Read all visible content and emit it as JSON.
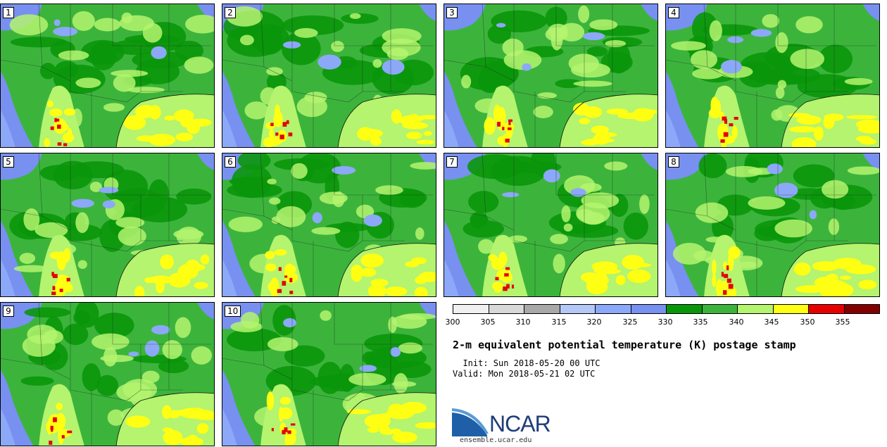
{
  "stamps": [
    "1",
    "2",
    "3",
    "4",
    "5",
    "6",
    "7",
    "8",
    "9",
    "10"
  ],
  "colorbar": {
    "levels": [
      "300",
      "305",
      "310",
      "315",
      "320",
      "325",
      "330",
      "335",
      "340",
      "345",
      "350",
      "355"
    ],
    "colors": [
      "#f0f0f0",
      "#d8d8d8",
      "#a8a8a8",
      "#b4c8f8",
      "#8ca8f8",
      "#7890f0",
      "#0a960a",
      "#3cb43c",
      "#b4f46e",
      "#ffff14",
      "#e60000",
      "#820000"
    ]
  },
  "map_colors": {
    "dark_green": "#0a960a",
    "green": "#3cb43c",
    "light_green": "#b4f46e",
    "yellow": "#ffff14",
    "red": "#e60000",
    "blue": "#7890f0",
    "light_blue": "#8ca8f8",
    "pale_blue": "#b4c8f8"
  },
  "title": "2-m equivalent potential temperature (K) postage stamp",
  "init": "  Init: Sun 2018-05-20 00 UTC",
  "valid": "Valid: Mon 2018-05-21 02 UTC",
  "logo_text": "NCAR",
  "url": "ensemble.ucar.edu"
}
